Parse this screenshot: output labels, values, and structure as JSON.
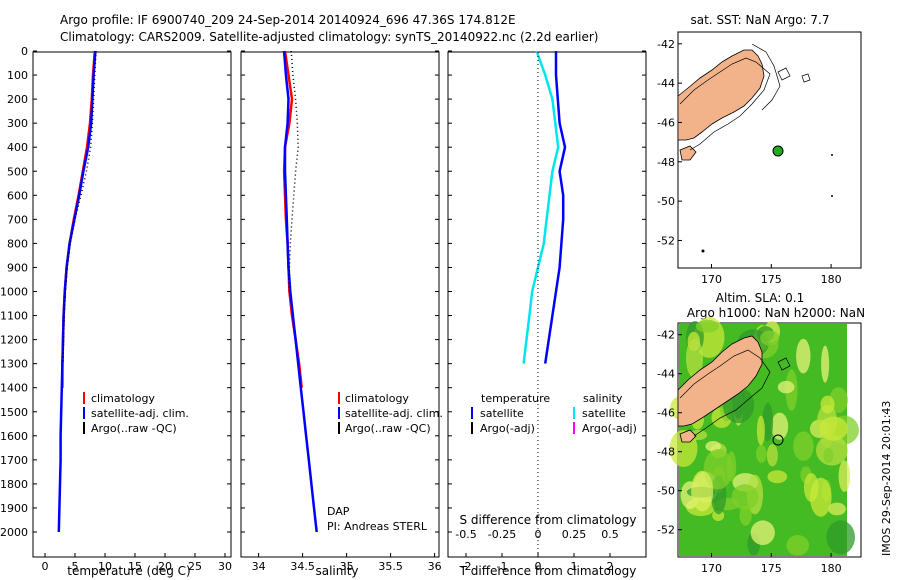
{
  "header": {
    "line1": "Argo profile: IF 6900740_209 24-Sep-2014 20140924_696 47.36S 174.812E",
    "line2": "Climatology: CARS2009. Satellite-adjusted climatology: synTS_20140922.nc (2.2d earlier)"
  },
  "colors": {
    "climatology": "#ff0000",
    "satellite": "#0000ff",
    "argo": "#000000",
    "s_satellite": "#00e5ee",
    "s_argo": "#ff00ff",
    "land": "#f2b38a",
    "ocean_sla": "#44bb22"
  },
  "depth_ticks": [
    "0",
    "100",
    "200",
    "300",
    "400",
    "500",
    "600",
    "700",
    "800",
    "900",
    "1000",
    "1100",
    "1200",
    "1300",
    "1400",
    "1500",
    "1600",
    "1700",
    "1800",
    "1900",
    "2000"
  ],
  "panels": {
    "temp": {
      "xlabel": "temperature (deg C)",
      "xticks": [
        "0",
        "5",
        "10",
        "15",
        "20",
        "25",
        "30"
      ],
      "legend": [
        "climatology",
        "satellite-adj. clim.",
        "Argo(..raw -QC)"
      ]
    },
    "sal": {
      "xlabel": "salinity",
      "xticks": [
        "34",
        "34.5",
        "35",
        "35.5",
        "36"
      ],
      "legend": [
        "climatology",
        "satellite-adj. clim.",
        "Argo(..raw -QC)"
      ],
      "credit1": "DAP",
      "credit2": "PI: Andreas STERL"
    },
    "diff": {
      "xlabel_bottom": "T difference from climatology",
      "xlabel_top": "S difference from climatology",
      "xticks_bottom": [
        "-2",
        "-1",
        "0",
        "1",
        "2"
      ],
      "xticks_top": [
        "-0.5",
        "-0.25",
        "0",
        "0.25",
        "0.5"
      ],
      "legend_temp_title": "temperature",
      "legend_sal_title": "salinity",
      "legend_temp": [
        "satellite",
        "Argo(-adj)"
      ],
      "legend_sal": [
        "satellite",
        "Argo(-adj)"
      ]
    },
    "map_sst": {
      "title": "sat. SST: NaN Argo: 7.7",
      "xticks": [
        "170",
        "175",
        "180"
      ],
      "yticks": [
        "-42",
        "-44",
        "-46",
        "-48",
        "-50",
        "-52"
      ]
    },
    "map_sla": {
      "title1": "Altim. SLA: 0.1",
      "title2": "Argo h1000: NaN h2000: NaN",
      "xticks": [
        "170",
        "175",
        "180"
      ],
      "yticks": [
        "-42",
        "-44",
        "-46",
        "-48",
        "-50",
        "-52"
      ]
    }
  },
  "side_stamp": "IMOS 29-Sep-2014 20:01:43",
  "chart_data": [
    {
      "type": "line",
      "xlabel": "temperature (deg C)",
      "ylim": [
        2080,
        0
      ],
      "xlim": [
        -2,
        31
      ],
      "series": [
        {
          "name": "climatology",
          "y": [
            0,
            100,
            200,
            300,
            400,
            500,
            600,
            700,
            800,
            900,
            1000,
            1100,
            1200,
            1300,
            1400
          ],
          "values": [
            8.3,
            8.0,
            7.8,
            7.5,
            7.0,
            6.3,
            5.6,
            4.8,
            4.1,
            3.6,
            3.3,
            3.1,
            3.0,
            2.9,
            2.9
          ]
        },
        {
          "name": "satellite-adj. clim.",
          "y": [
            0,
            100,
            200,
            300,
            400,
            500,
            600,
            700,
            800,
            900,
            1000,
            1100,
            1200,
            1300,
            1400,
            1500,
            1600,
            1700,
            1800,
            1900,
            2000
          ],
          "values": [
            8.4,
            8.1,
            7.9,
            7.7,
            7.2,
            6.4,
            5.7,
            4.9,
            4.1,
            3.6,
            3.3,
            3.1,
            3.0,
            2.9,
            2.8,
            2.7,
            2.6,
            2.6,
            2.5,
            2.4,
            2.3
          ]
        },
        {
          "name": "Argo(..raw -QC)",
          "y": [
            0,
            100,
            200,
            300,
            400,
            500,
            600,
            700,
            800,
            900,
            1000,
            1100,
            1200,
            1300
          ],
          "values": [
            8.5,
            8.3,
            8.1,
            7.9,
            7.6,
            6.9,
            6.0,
            5.0,
            4.2,
            3.7,
            3.4,
            3.2,
            3.1,
            3.0
          ]
        }
      ]
    },
    {
      "type": "line",
      "xlabel": "salinity",
      "ylim": [
        2080,
        0
      ],
      "xlim": [
        33.8,
        36.05
      ],
      "series": [
        {
          "name": "climatology",
          "y": [
            0,
            100,
            200,
            300,
            400,
            500,
            600,
            700,
            800,
            900,
            1000,
            1100,
            1200,
            1300,
            1400
          ],
          "values": [
            34.3,
            34.34,
            34.38,
            34.35,
            34.3,
            34.29,
            34.3,
            34.31,
            34.33,
            34.34,
            34.35,
            34.38,
            34.42,
            34.46,
            34.49
          ]
        },
        {
          "name": "satellite-adj. clim.",
          "y": [
            0,
            100,
            200,
            300,
            400,
            500,
            600,
            700,
            800,
            900,
            1000,
            1100,
            1200,
            1300,
            1400,
            1500,
            1600,
            1700,
            1800,
            1900,
            2000
          ],
          "values": [
            34.29,
            34.31,
            34.34,
            34.33,
            34.3,
            34.3,
            34.31,
            34.32,
            34.33,
            34.34,
            34.36,
            34.39,
            34.42,
            34.45,
            34.48,
            34.51,
            34.54,
            34.57,
            34.6,
            34.63,
            34.66
          ]
        },
        {
          "name": "Argo(..raw -QC)",
          "y": [
            0,
            100,
            200,
            300,
            400,
            500,
            600,
            700,
            800,
            900,
            1000
          ],
          "values": [
            34.37,
            34.39,
            34.42,
            34.44,
            34.45,
            34.42,
            34.4,
            34.38,
            34.36,
            34.35,
            34.35
          ]
        }
      ]
    },
    {
      "type": "line",
      "xlabel": "T difference from climatology",
      "ylim": [
        2080,
        0
      ],
      "xlim": [
        -2.5,
        3
      ],
      "series": [
        {
          "name": "satellite",
          "y": [
            0,
            100,
            200,
            300,
            400,
            500,
            600,
            700,
            800,
            900,
            1000,
            1100,
            1200,
            1300
          ],
          "values": [
            0.5,
            0.5,
            0.55,
            0.6,
            0.75,
            0.6,
            0.7,
            0.7,
            0.65,
            0.6,
            0.5,
            0.4,
            0.3,
            0.2
          ]
        },
        {
          "name": "satellite (salinity)",
          "y": [
            0,
            100,
            200,
            300,
            400,
            500,
            600,
            700,
            800,
            900,
            1000,
            1100,
            1200,
            1300
          ],
          "values": [
            -0.01,
            0.05,
            0.1,
            0.12,
            0.14,
            0.1,
            0.08,
            0.06,
            0.04,
            0.0,
            -0.04,
            -0.06,
            -0.08,
            -0.1
          ]
        }
      ]
    }
  ]
}
